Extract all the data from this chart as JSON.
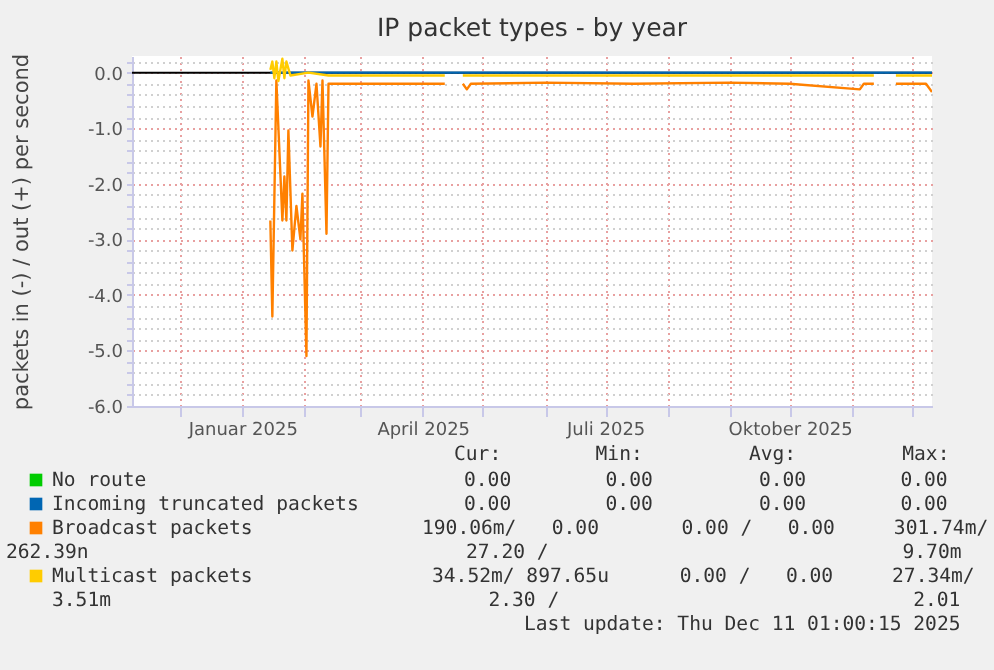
{
  "chart_data": {
    "type": "line",
    "title": "IP packet types - by year",
    "ylabel": "packets in (-) / out (+) per second",
    "xlim": [
      "2024-11-07",
      "2025-12-11"
    ],
    "xticks": [
      {
        "value": "2024-12-01",
        "label": null
      },
      {
        "value": "2025-01-01",
        "label": "Januar 2025"
      },
      {
        "value": "2025-02-01",
        "label": null
      },
      {
        "value": "2025-03-01",
        "label": null
      },
      {
        "value": "2025-04-01",
        "label": "April 2025"
      },
      {
        "value": "2025-05-01",
        "label": null
      },
      {
        "value": "2025-06-01",
        "label": null
      },
      {
        "value": "2025-07-01",
        "label": "Juli 2025"
      },
      {
        "value": "2025-08-01",
        "label": null
      },
      {
        "value": "2025-09-01",
        "label": null
      },
      {
        "value": "2025-10-01",
        "label": "Oktober 2025"
      },
      {
        "value": "2025-11-01",
        "label": null
      },
      {
        "value": "2025-12-01",
        "label": null
      }
    ],
    "ylim": [
      -6,
      0.3
    ],
    "yticks": [
      {
        "value": 0,
        "label": "0.0"
      },
      {
        "value": -1,
        "label": "-1.0"
      },
      {
        "value": -2,
        "label": "-2.0"
      },
      {
        "value": -3,
        "label": "-3.0"
      },
      {
        "value": -4,
        "label": "-4.0"
      },
      {
        "value": -5,
        "label": "-5.0"
      },
      {
        "value": -6,
        "label": "-6.0"
      },
      {
        "value": -0.2,
        "label": null
      },
      {
        "value": -0.4,
        "label": null
      },
      {
        "value": -0.6,
        "label": null
      },
      {
        "value": -0.8,
        "label": null
      },
      {
        "value": -1.2,
        "label": null
      },
      {
        "value": -1.4,
        "label": null
      },
      {
        "value": -1.6,
        "label": null
      },
      {
        "value": -1.8,
        "label": null
      },
      {
        "value": -2.2,
        "label": null
      },
      {
        "value": -2.4,
        "label": null
      },
      {
        "value": -2.6,
        "label": null
      },
      {
        "value": -2.8,
        "label": null
      },
      {
        "value": -3.2,
        "label": null
      },
      {
        "value": -3.4,
        "label": null
      },
      {
        "value": -3.6,
        "label": null
      },
      {
        "value": -3.8,
        "label": null
      },
      {
        "value": -4.2,
        "label": null
      },
      {
        "value": -4.4,
        "label": null
      },
      {
        "value": -4.6,
        "label": null
      },
      {
        "value": -4.8,
        "label": null
      },
      {
        "value": -5.2,
        "label": null
      },
      {
        "value": -5.4,
        "label": null
      },
      {
        "value": -5.6,
        "label": null
      },
      {
        "value": -5.8,
        "label": null
      },
      {
        "value": 0.2,
        "label": null
      }
    ],
    "grid": true,
    "legend": "bottom",
    "marker": "none",
    "line_style": "solid",
    "ref_lines": [
      {
        "axis": "y",
        "value": 0,
        "color": "#000000"
      }
    ],
    "series": [
      {
        "name": "No route",
        "color": "#00cc00"
      },
      {
        "name": "Incoming truncated packets",
        "color": "#0066b3",
        "x": [
          "2025-01-15",
          "2025-12-11"
        ],
        "values": [
          0,
          0
        ]
      },
      {
        "name": "Broadcast packets",
        "color": "#ff8000",
        "x": [
          "2025-01-15",
          "2025-01-16",
          "2025-01-18",
          "2025-01-21",
          "2025-01-22",
          "2025-01-23",
          "2025-01-24",
          "2025-01-26",
          "2025-01-28",
          "2025-01-30",
          "2025-01-31",
          "2025-02-02",
          "2025-02-03",
          "2025-02-05",
          "2025-02-07",
          "2025-02-09",
          "2025-02-10",
          "2025-02-12",
          "2025-02-13",
          "2025-03-15",
          "2025-04-12",
          "2025-04-16",
          "2025-04-21",
          "2025-04-23",
          "2025-04-25",
          "2025-06-01",
          "2025-07-15",
          "2025-09-01",
          "2025-10-01",
          "2025-11-05",
          "2025-11-07",
          "2025-11-12",
          "2025-11-17",
          "2025-11-23",
          "2025-12-08",
          "2025-12-11"
        ],
        "values": [
          -2.66,
          -4.39,
          -0.14,
          -2.66,
          -1.87,
          -2.66,
          -1.04,
          -3.2,
          -2.4,
          -3.0,
          -2.18,
          -5.1,
          -0.14,
          -0.79,
          -0.2,
          -1.33,
          -0.14,
          -2.9,
          -0.2,
          -0.2,
          -0.2,
          null,
          -0.2,
          -0.3,
          -0.2,
          -0.18,
          -0.2,
          -0.18,
          -0.2,
          -0.3,
          -0.2,
          -0.2,
          null,
          -0.2,
          -0.2,
          -0.35
        ]
      },
      {
        "name": "Multicast packets",
        "color": "#ffcc00",
        "x": [
          "2025-01-15",
          "2025-01-16",
          "2025-01-17",
          "2025-01-18",
          "2025-01-19",
          "2025-01-21",
          "2025-01-22",
          "2025-01-23",
          "2025-01-25",
          "2025-02-03",
          "2025-02-13",
          "2025-03-01",
          "2025-04-12",
          "2025-04-16",
          "2025-04-21",
          "2025-06-01",
          "2025-08-01",
          "2025-10-01",
          "2025-11-12",
          "2025-11-17",
          "2025-11-23",
          "2025-12-11"
        ],
        "values": [
          0.05,
          0.2,
          -0.1,
          0.2,
          -0.15,
          0.25,
          -0.1,
          0.2,
          -0.05,
          0.0,
          -0.05,
          -0.05,
          -0.05,
          null,
          -0.05,
          -0.05,
          -0.05,
          -0.05,
          -0.05,
          null,
          -0.05,
          -0.05
        ]
      }
    ],
    "annotations": [
      "Cur:        Min:         Avg:         Max:",
      "0.00        0.00         0.00        0.00",
      "0.00        0.00         0.00        0.00",
      "190.06m/   0.00       0.00 /   0.00     301.74m/",
      "262.39n                                27.20 /                              9.70m",
      "34.52m/ 897.65u      0.00 /   0.00     27.34m/",
      "3.51m                                2.30 /                              2.01",
      "Last update: Thu Dec 11 01:00:15 2025"
    ]
  }
}
